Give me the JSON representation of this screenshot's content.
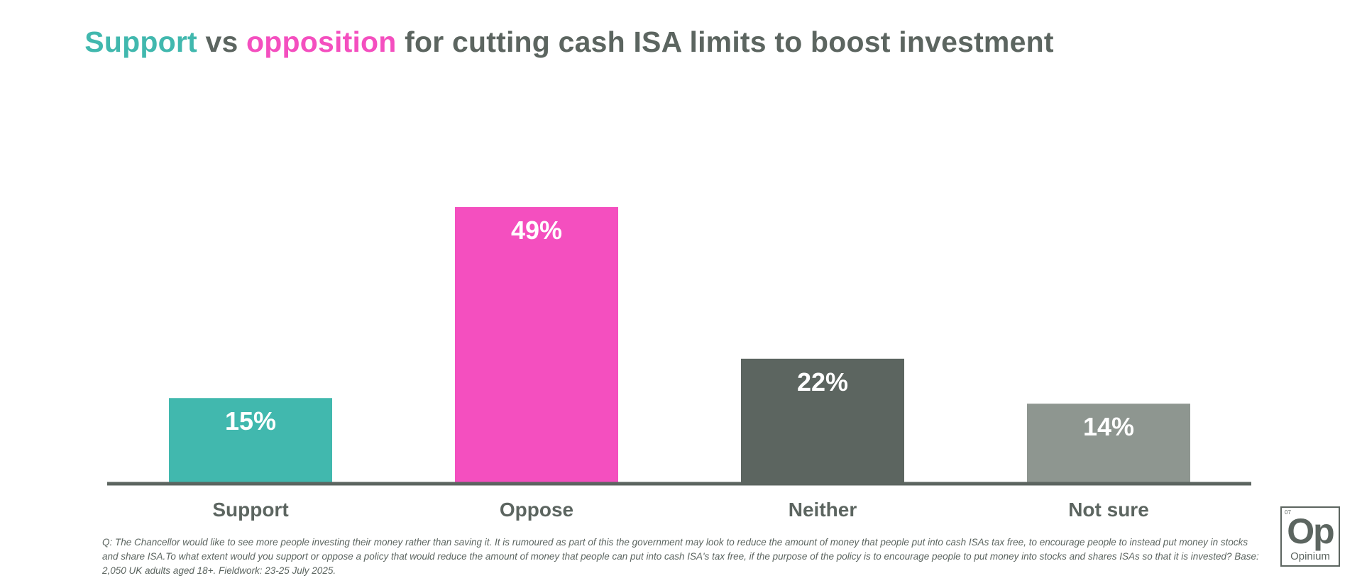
{
  "title": {
    "support_word": "Support",
    "vs_word": "vs",
    "opposition_word": "opposition",
    "rest": "for cutting cash ISA limits to boost investment"
  },
  "colors": {
    "support": "#41b8ae",
    "oppose": "#f44fbf",
    "neither": "#5c6560",
    "not_sure": "#8e9690",
    "axis": "#5c6560",
    "label_text": "#5c6560",
    "value_text": "#ffffff"
  },
  "chart_data": {
    "type": "bar",
    "categories": [
      "Support",
      "Oppose",
      "Neither",
      "Not sure"
    ],
    "values": [
      15,
      49,
      22,
      14
    ],
    "value_labels": [
      "15%",
      "49%",
      "22%",
      "14%"
    ],
    "ylim": [
      0,
      60
    ],
    "grid": false,
    "legend": "none"
  },
  "footnote": "Q: The Chancellor would like to see more people investing their money rather than saving it. It is rumoured as part of this the government may look to reduce the amount of money that people put into cash ISAs tax free, to encourage people to instead put money in stocks and share ISA.To what extent would you support or oppose a policy that would reduce the amount of money that people can put into cash ISA's tax free, if the purpose of the policy is to encourage people to put money into stocks and shares ISAs so that it is invested? Base: 2,050 UK adults aged 18+. Fieldwork: 23-25 July 2025.",
  "logo": {
    "number": "07",
    "mark": "Op",
    "name": "Opinium"
  }
}
